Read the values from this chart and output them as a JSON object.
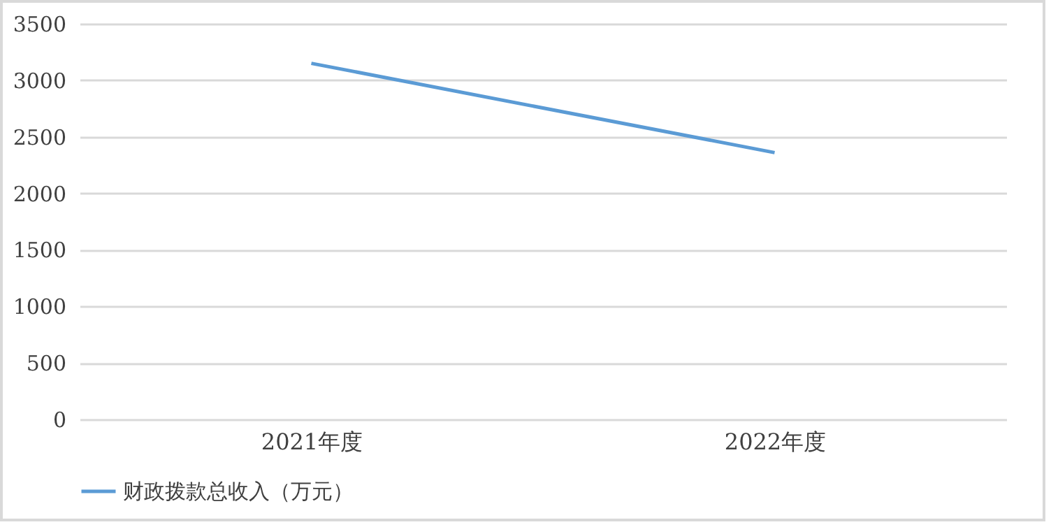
{
  "chart_data": {
    "type": "line",
    "categories": [
      "2021年度",
      "2022年度"
    ],
    "series": [
      {
        "name": "财政拨款总收入（万元）",
        "color": "#5b9bd5",
        "values": [
          3150,
          2360
        ]
      }
    ],
    "ylim": [
      0,
      3500
    ],
    "yticks": [
      0,
      500,
      1000,
      1500,
      2000,
      2500,
      3000,
      3500
    ],
    "grid": "y",
    "legend": "bottom",
    "marker": "none",
    "line_style": "solid"
  }
}
